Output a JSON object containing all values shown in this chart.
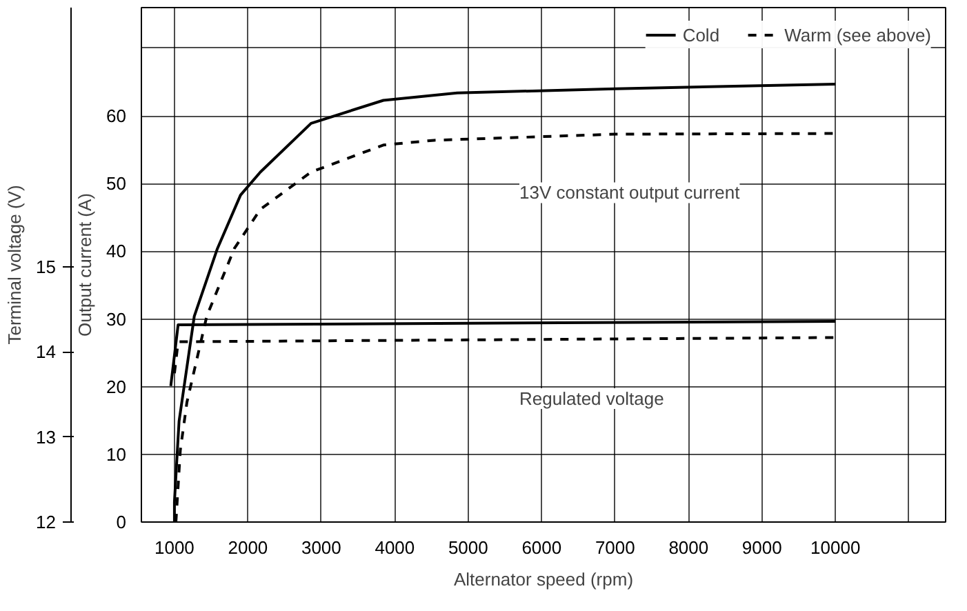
{
  "chart_data": {
    "type": "line",
    "xlabel": "Alternator speed (rpm)",
    "ylabel": "Output current (A)",
    "y2label": "Terminal voltage (V)",
    "xlim": [
      550,
      11500
    ],
    "xticks": [
      1000,
      2000,
      3000,
      4000,
      5000,
      6000,
      7000,
      8000,
      9000,
      10000,
      {
        "value": 11000,
        "label": null
      }
    ],
    "ylim": [
      0,
      76
    ],
    "yticks": [
      0,
      10,
      20,
      30,
      40,
      50,
      60,
      {
        "value": 70,
        "label": null
      }
    ],
    "y2lim": [
      12,
      18.05
    ],
    "y2ticks": [
      12,
      13,
      14,
      15
    ],
    "grid": true,
    "legend": "top right",
    "annotations": [
      "13V constant output current",
      "Regulated voltage"
    ],
    "series": [
      {
        "name": "Cold",
        "color": "#000000",
        "line_style": "solid",
        "x": [
          1000,
          1000,
          1040,
          1063,
          1270,
          1585,
          1900,
          2170,
          2860,
          3845,
          4850,
          7000,
          10000
        ],
        "values": [
          0,
          3,
          10.6,
          14.9,
          30.4,
          40.4,
          48.3,
          51.7,
          58.9,
          62.3,
          63.4,
          64.0,
          64.7
        ]
      },
      {
        "name": "Warm (see above)",
        "color": "#000000",
        "line_style": "dashed",
        "x": [
          1020,
          1080,
          1170,
          1440,
          1815,
          2170,
          2860,
          3845,
          4535,
          7000,
          10000
        ],
        "values": [
          0,
          10.6,
          17.7,
          30.4,
          40.4,
          46.2,
          51.7,
          55.7,
          56.4,
          57.3,
          57.4
        ]
      },
      {
        "color": "#000000",
        "line_style": "solid",
        "axis": "y2",
        "x": [
          950,
          1050,
          10000
        ],
        "values": [
          13.6,
          14.32,
          14.36
        ]
      },
      {
        "color": "#000000",
        "line_style": "dashed",
        "axis": "y2",
        "x": [
          1000,
          1050,
          10000
        ],
        "values": [
          13.75,
          14.12,
          14.17
        ]
      }
    ]
  }
}
